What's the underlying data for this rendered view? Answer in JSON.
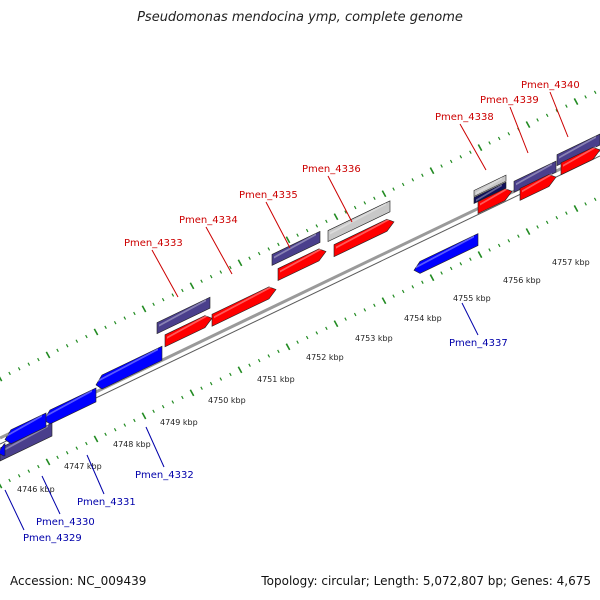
{
  "title": "Pseudomonas mendocina ymp, complete genome",
  "footer": {
    "accession": "Accession: NC_009439",
    "summary": "Topology: circular; Length: 5,072,807 bp; Genes: 4,675"
  },
  "colors": {
    "forward_cds": "#ff0000",
    "reverse_cds": "#0000ff",
    "feature_purple": "#4a3f8c",
    "feature_gray": "#c8c8c8",
    "backbone": "#9a9a9a",
    "tick_green": "#228b22",
    "label_red": "#cc0000",
    "label_blue": "#0000aa"
  },
  "scale": {
    "unit": "kbp",
    "ticks": [
      "4746 kbp",
      "4747 kbp",
      "4748 kbp",
      "4749 kbp",
      "4750 kbp",
      "4751 kbp",
      "4752 kbp",
      "4753 kbp",
      "4754 kbp",
      "4755 kbp",
      "4756 kbp",
      "4757 kbp"
    ]
  },
  "labels_forward": [
    "Pmen_4333",
    "Pmen_4334",
    "Pmen_4335",
    "Pmen_4336",
    "Pmen_4338",
    "Pmen_4339",
    "Pmen_4340"
  ],
  "labels_reverse": [
    "Pmen_4329",
    "Pmen_4330",
    "Pmen_4331",
    "Pmen_4332",
    "Pmen_4337"
  ]
}
